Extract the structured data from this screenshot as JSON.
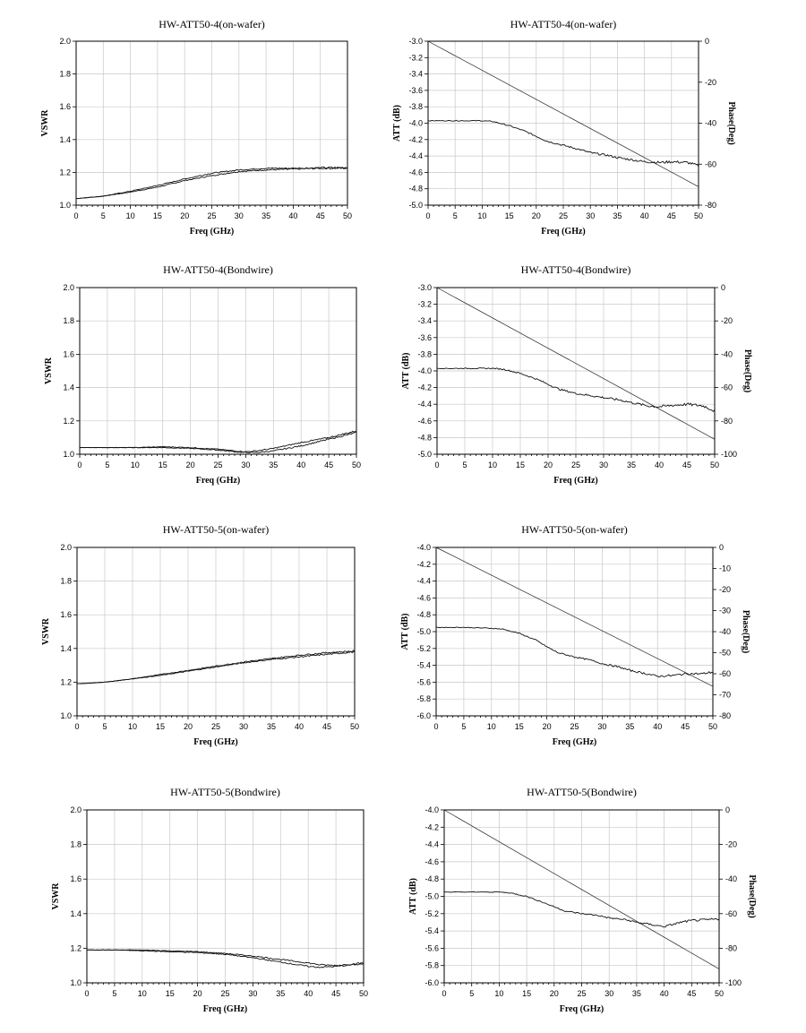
{
  "chart_data": [
    {
      "id": "p1",
      "type": "line",
      "title": "HW-ATT50-4(on-wafer)",
      "xlabel": "Freq (GHz)",
      "ylabel": "VSWR",
      "xlim": [
        0,
        50
      ],
      "ylim": [
        1.0,
        2.0
      ],
      "xticks": [
        0,
        5,
        10,
        15,
        20,
        25,
        30,
        35,
        40,
        45,
        50
      ],
      "yticks": [
        1.0,
        1.2,
        1.4,
        1.6,
        1.8,
        2.0
      ],
      "grid": true,
      "series": [
        {
          "x": [
            0,
            5,
            10,
            15,
            20,
            25,
            30,
            35,
            40,
            45,
            50
          ],
          "y": [
            1.04,
            1.055,
            1.08,
            1.11,
            1.15,
            1.18,
            1.205,
            1.215,
            1.22,
            1.225,
            1.225
          ],
          "noise": 0.006
        },
        {
          "x": [
            0,
            5,
            10,
            15,
            20,
            25,
            30,
            35,
            40,
            45,
            50
          ],
          "y": [
            1.04,
            1.055,
            1.085,
            1.12,
            1.16,
            1.195,
            1.215,
            1.225,
            1.225,
            1.228,
            1.23
          ],
          "noise": 0.006
        }
      ]
    },
    {
      "id": "p2",
      "type": "line",
      "title": "HW-ATT50-4(on-wafer)",
      "xlabel": "Freq (GHz)",
      "ylabel": "ATT (dB)",
      "y2label": "Phase(Deg)",
      "xlim": [
        0,
        50
      ],
      "ylim": [
        -5.0,
        -3.0
      ],
      "y2lim": [
        -80,
        0
      ],
      "xticks": [
        0,
        5,
        10,
        15,
        20,
        25,
        30,
        35,
        40,
        45,
        50
      ],
      "yticks": [
        -5.0,
        -4.8,
        -4.6,
        -4.4,
        -4.2,
        -4.0,
        -3.8,
        -3.6,
        -3.4,
        -3.2,
        -3.0
      ],
      "y2ticks": [
        -80,
        -60,
        -40,
        -20,
        0
      ],
      "grid": true,
      "series": [
        {
          "axis": "left",
          "x": [
            0,
            5,
            10,
            12,
            15,
            18,
            20,
            22,
            25,
            28,
            30,
            33,
            35,
            38,
            40,
            43,
            45,
            48,
            50
          ],
          "y": [
            -3.97,
            -3.97,
            -3.97,
            -3.98,
            -4.03,
            -4.1,
            -4.16,
            -4.22,
            -4.27,
            -4.32,
            -4.36,
            -4.39,
            -4.42,
            -4.45,
            -4.47,
            -4.48,
            -4.47,
            -4.48,
            -4.52
          ],
          "noise": 0.018
        },
        {
          "axis": "right",
          "x": [
            0,
            50
          ],
          "y": [
            0,
            -71
          ],
          "noise": 0
        }
      ]
    },
    {
      "id": "p3",
      "type": "line",
      "title": "HW-ATT50-4(Bondwire)",
      "xlabel": "Freq (GHz)",
      "ylabel": "VSWR",
      "xlim": [
        0,
        50
      ],
      "ylim": [
        1.0,
        2.0
      ],
      "xticks": [
        0,
        5,
        10,
        15,
        20,
        25,
        30,
        35,
        40,
        45,
        50
      ],
      "yticks": [
        1.0,
        1.2,
        1.4,
        1.6,
        1.8,
        2.0
      ],
      "grid": true,
      "series": [
        {
          "x": [
            0,
            5,
            10,
            15,
            20,
            25,
            28,
            30,
            32,
            35,
            40,
            45,
            50
          ],
          "y": [
            1.04,
            1.04,
            1.04,
            1.04,
            1.035,
            1.025,
            1.015,
            1.01,
            1.01,
            1.02,
            1.05,
            1.09,
            1.13
          ],
          "noise": 0.005
        },
        {
          "x": [
            0,
            5,
            10,
            15,
            20,
            25,
            28,
            30,
            32,
            35,
            40,
            45,
            50
          ],
          "y": [
            1.04,
            1.04,
            1.04,
            1.045,
            1.04,
            1.03,
            1.02,
            1.015,
            1.02,
            1.035,
            1.07,
            1.1,
            1.14
          ],
          "noise": 0.005
        }
      ]
    },
    {
      "id": "p4",
      "type": "line",
      "title": "HW-ATT50-4(Bondwire)",
      "xlabel": "Freq (GHz)",
      "ylabel": "ATT (dB)",
      "y2label": "Phase(Deg)",
      "xlim": [
        0,
        50
      ],
      "ylim": [
        -5.0,
        -3.0
      ],
      "y2lim": [
        -100,
        0
      ],
      "xticks": [
        0,
        5,
        10,
        15,
        20,
        25,
        30,
        35,
        40,
        45,
        50
      ],
      "yticks": [
        -5.0,
        -4.8,
        -4.6,
        -4.4,
        -4.2,
        -4.0,
        -3.8,
        -3.6,
        -3.4,
        -3.2,
        -3.0
      ],
      "y2ticks": [
        -100,
        -80,
        -60,
        -40,
        -20,
        0
      ],
      "grid": true,
      "series": [
        {
          "axis": "left",
          "x": [
            0,
            5,
            10,
            12,
            15,
            18,
            20,
            22,
            25,
            28,
            30,
            33,
            35,
            38,
            40,
            43,
            45,
            48,
            50
          ],
          "y": [
            -3.97,
            -3.97,
            -3.97,
            -3.98,
            -4.03,
            -4.1,
            -4.16,
            -4.22,
            -4.27,
            -4.3,
            -4.32,
            -4.35,
            -4.38,
            -4.42,
            -4.43,
            -4.41,
            -4.4,
            -4.42,
            -4.48
          ],
          "noise": 0.02
        },
        {
          "axis": "right",
          "x": [
            0,
            50
          ],
          "y": [
            0,
            -91
          ],
          "noise": 0
        }
      ]
    },
    {
      "id": "p5",
      "type": "line",
      "title": "HW-ATT50-5(on-wafer)",
      "xlabel": "Freq (GHz)",
      "ylabel": "VSWR",
      "xlim": [
        0,
        50
      ],
      "ylim": [
        1.0,
        2.0
      ],
      "xticks": [
        0,
        5,
        10,
        15,
        20,
        25,
        30,
        35,
        40,
        45,
        50
      ],
      "yticks": [
        1.0,
        1.2,
        1.4,
        1.6,
        1.8,
        2.0
      ],
      "grid": true,
      "series": [
        {
          "x": [
            0,
            5,
            10,
            15,
            20,
            25,
            30,
            35,
            40,
            45,
            50
          ],
          "y": [
            1.19,
            1.2,
            1.22,
            1.24,
            1.265,
            1.29,
            1.315,
            1.335,
            1.35,
            1.365,
            1.38
          ],
          "noise": 0.005
        },
        {
          "x": [
            0,
            5,
            10,
            15,
            20,
            25,
            30,
            35,
            40,
            45,
            50
          ],
          "y": [
            1.19,
            1.2,
            1.22,
            1.245,
            1.27,
            1.295,
            1.32,
            1.34,
            1.36,
            1.375,
            1.385
          ],
          "noise": 0.005
        }
      ]
    },
    {
      "id": "p6",
      "type": "line",
      "title": "HW-ATT50-5(on-wafer)",
      "xlabel": "Freq (GHz)",
      "ylabel": "ATT (dB)",
      "y2label": "Phase(Deg)",
      "xlim": [
        0,
        50
      ],
      "ylim": [
        -6.0,
        -4.0
      ],
      "y2lim": [
        -80,
        0
      ],
      "xticks": [
        0,
        5,
        10,
        15,
        20,
        25,
        30,
        35,
        40,
        45,
        50
      ],
      "yticks": [
        -6.0,
        -5.8,
        -5.6,
        -5.4,
        -5.2,
        -5.0,
        -4.8,
        -4.6,
        -4.4,
        -4.2,
        -4.0
      ],
      "y2ticks": [
        -80,
        -70,
        -60,
        -50,
        -40,
        -30,
        -20,
        -10,
        0
      ],
      "grid": true,
      "series": [
        {
          "axis": "left",
          "x": [
            0,
            5,
            10,
            12,
            15,
            18,
            20,
            22,
            25,
            28,
            30,
            33,
            35,
            38,
            40,
            43,
            45,
            48,
            50
          ],
          "y": [
            -4.95,
            -4.95,
            -4.96,
            -4.97,
            -5.02,
            -5.1,
            -5.18,
            -5.25,
            -5.3,
            -5.34,
            -5.38,
            -5.42,
            -5.46,
            -5.5,
            -5.53,
            -5.52,
            -5.5,
            -5.5,
            -5.48
          ],
          "noise": 0.015
        },
        {
          "axis": "right",
          "x": [
            0,
            50
          ],
          "y": [
            0,
            -66
          ],
          "noise": 0
        }
      ]
    },
    {
      "id": "p7",
      "type": "line",
      "title": "HW-ATT50-5(Bondwire)",
      "xlabel": "Freq (GHz)",
      "ylabel": "VSWR",
      "xlim": [
        0,
        50
      ],
      "ylim": [
        1.0,
        2.0
      ],
      "xticks": [
        0,
        5,
        10,
        15,
        20,
        25,
        30,
        35,
        40,
        45,
        50
      ],
      "yticks": [
        1.0,
        1.2,
        1.4,
        1.6,
        1.8,
        2.0
      ],
      "grid": true,
      "series": [
        {
          "x": [
            0,
            5,
            10,
            15,
            20,
            25,
            30,
            35,
            40,
            42,
            45,
            50
          ],
          "y": [
            1.19,
            1.19,
            1.185,
            1.18,
            1.175,
            1.165,
            1.145,
            1.12,
            1.095,
            1.09,
            1.095,
            1.11
          ],
          "noise": 0.005
        },
        {
          "x": [
            0,
            5,
            10,
            15,
            20,
            25,
            30,
            35,
            40,
            42,
            45,
            50
          ],
          "y": [
            1.19,
            1.19,
            1.19,
            1.185,
            1.18,
            1.17,
            1.155,
            1.135,
            1.115,
            1.105,
            1.1,
            1.115
          ],
          "noise": 0.005
        }
      ]
    },
    {
      "id": "p8",
      "type": "line",
      "title": "HW-ATT50-5(Bondwire)",
      "xlabel": "Freq (GHz)",
      "ylabel": "ATT (dB)",
      "y2label": "Phase(Deg)",
      "xlim": [
        0,
        50
      ],
      "ylim": [
        -6.0,
        -4.0
      ],
      "y2lim": [
        -100,
        0
      ],
      "xticks": [
        0,
        5,
        10,
        15,
        20,
        25,
        30,
        35,
        40,
        45,
        50
      ],
      "yticks": [
        -6.0,
        -5.8,
        -5.6,
        -5.4,
        -5.2,
        -5.0,
        -4.8,
        -4.6,
        -4.4,
        -4.2,
        -4.0
      ],
      "y2ticks": [
        -100,
        -80,
        -60,
        -40,
        -20,
        0
      ],
      "grid": true,
      "series": [
        {
          "axis": "left",
          "x": [
            0,
            5,
            10,
            12,
            15,
            18,
            20,
            22,
            25,
            28,
            30,
            33,
            35,
            38,
            40,
            43,
            45,
            48,
            50
          ],
          "y": [
            -4.95,
            -4.95,
            -4.95,
            -4.96,
            -5.0,
            -5.07,
            -5.12,
            -5.17,
            -5.2,
            -5.22,
            -5.25,
            -5.27,
            -5.3,
            -5.33,
            -5.35,
            -5.3,
            -5.28,
            -5.27,
            -5.26
          ],
          "noise": 0.015
        },
        {
          "axis": "right",
          "x": [
            0,
            50
          ],
          "y": [
            0,
            -92
          ],
          "noise": 0
        }
      ]
    }
  ]
}
